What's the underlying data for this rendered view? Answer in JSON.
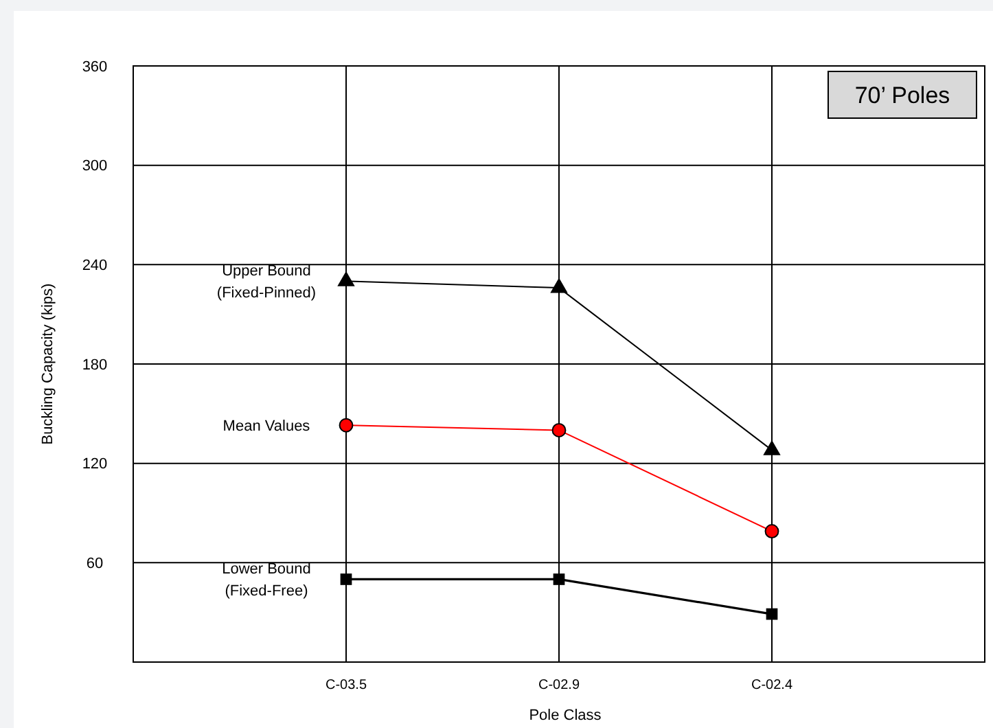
{
  "chart_data": {
    "type": "line",
    "title": "70’ Poles",
    "xlabel": "Pole Class",
    "ylabel": "Buckling Capacity (kips)",
    "categories": [
      "C-03.5",
      "C-02.9",
      "C-02.4"
    ],
    "series": [
      {
        "name": "Upper Bound (Fixed-Pinned)",
        "color": "#000000",
        "marker": "triangle",
        "values": [
          230,
          226,
          128
        ]
      },
      {
        "name": "Mean Values",
        "color": "#ff0000",
        "marker": "circle",
        "values": [
          143,
          140,
          79
        ]
      },
      {
        "name": "Lower Bound (Fixed-Free)",
        "color": "#000000",
        "marker": "square",
        "values": [
          50,
          50,
          29
        ]
      }
    ],
    "ylim": [
      0,
      360
    ],
    "yticks": [
      {
        "value": 0,
        "label": null
      },
      60,
      120,
      180,
      240,
      300,
      360
    ],
    "grid": true,
    "line_style": "solid"
  }
}
